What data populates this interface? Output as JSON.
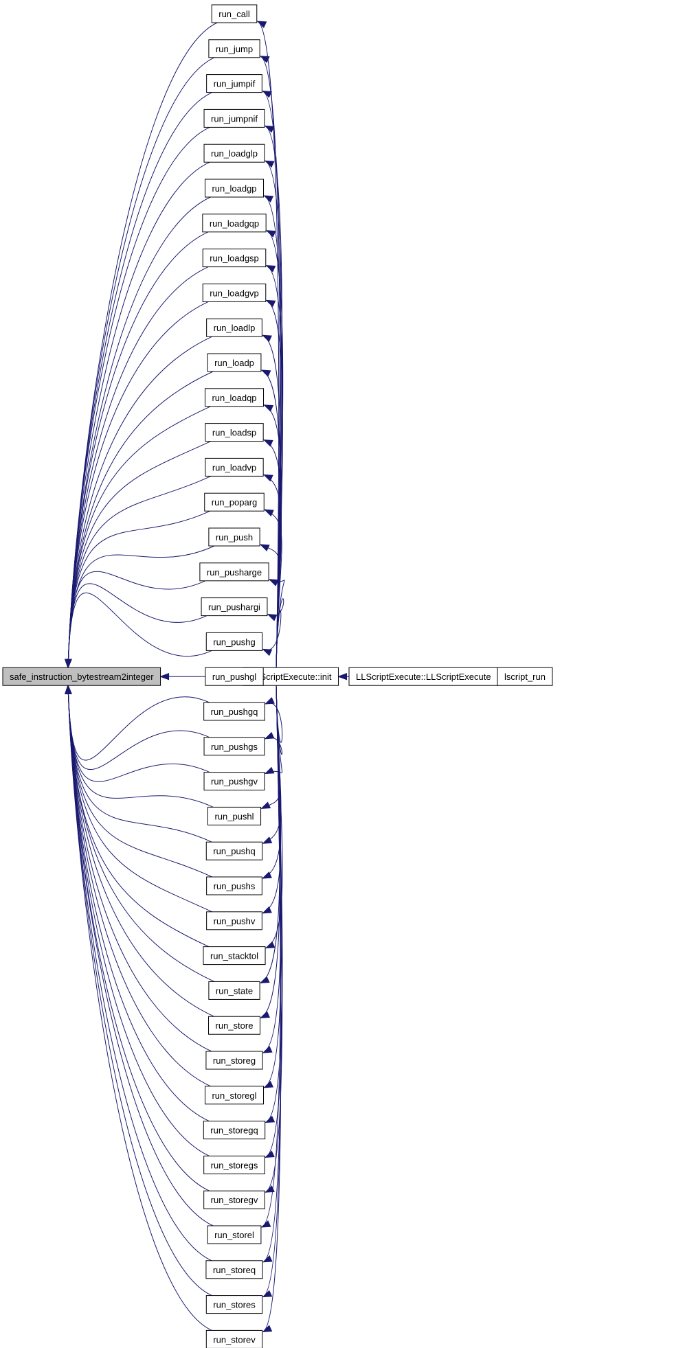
{
  "graph": {
    "root": "safe_instruction_bytestream2integer",
    "callers": [
      "run_call",
      "run_jump",
      "run_jumpif",
      "run_jumpnif",
      "run_loadglp",
      "run_loadgp",
      "run_loadgqp",
      "run_loadgsp",
      "run_loadgvp",
      "run_loadlp",
      "run_loadp",
      "run_loadqp",
      "run_loadsp",
      "run_loadvp",
      "run_poparg",
      "run_push",
      "run_pusharge",
      "run_pushargi",
      "run_pushg",
      "run_pushgl",
      "run_pushgq",
      "run_pushgs",
      "run_pushgv",
      "run_pushl",
      "run_pushq",
      "run_pushs",
      "run_pushv",
      "run_stacktol",
      "run_state",
      "run_store",
      "run_storeg",
      "run_storegl",
      "run_storegq",
      "run_storegs",
      "run_storegv",
      "run_storel",
      "run_storeq",
      "run_stores",
      "run_storev"
    ],
    "init": "LLScriptExecute::init",
    "ctor": "LLScriptExecute::LLScriptExecute",
    "entry": "lscript_run",
    "colors": {
      "edge": "#191970",
      "root_fill": "#bfbfbf",
      "node_fill": "#ffffff",
      "border": "#000000"
    }
  }
}
